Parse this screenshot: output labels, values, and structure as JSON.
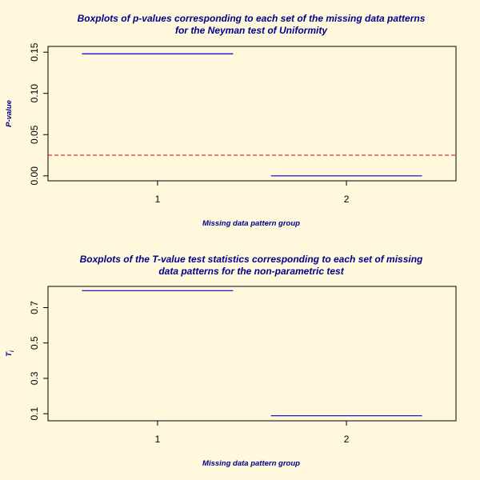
{
  "chart_data": [
    {
      "type": "boxplot",
      "title_lines": [
        "Boxplots of p-values corresponding to each set of the missing data patterns",
        "for the Neyman test of Uniformity"
      ],
      "xlabel": "Missing data pattern group",
      "ylabel": "P-value",
      "ylabel_sub": "",
      "categories": [
        "1",
        "2"
      ],
      "values": [
        0.148,
        0.0
      ],
      "ylim": [
        -0.006,
        0.157
      ],
      "yticks": [
        0.0,
        0.05,
        0.1,
        0.15
      ],
      "ytick_labels": [
        "0.00",
        "0.05",
        "0.10",
        "0.15"
      ],
      "reference_line": {
        "value": 0.025,
        "color": "#dd0000",
        "style": "dashed"
      },
      "box_color": "#0000cc",
      "grid": false
    },
    {
      "type": "boxplot",
      "title_lines": [
        "Boxplots of the T-value test statistics corresponding to each set of missing",
        "data patterns for the non-parametric test"
      ],
      "xlabel": "Missing data pattern group",
      "ylabel": "T",
      "ylabel_sub": "i",
      "categories": [
        "1",
        "2"
      ],
      "values": [
        0.796,
        0.0885
      ],
      "ylim": [
        0.06,
        0.82
      ],
      "yticks": [
        0.1,
        0.3,
        0.5,
        0.7
      ],
      "ytick_labels": [
        "0.1",
        "0.3",
        "0.5",
        "0.7"
      ],
      "reference_line": null,
      "box_color": "#0000cc",
      "grid": false
    }
  ],
  "colors": {
    "background": "#fff8dc",
    "title": "#00008b",
    "axis": "#000000"
  }
}
